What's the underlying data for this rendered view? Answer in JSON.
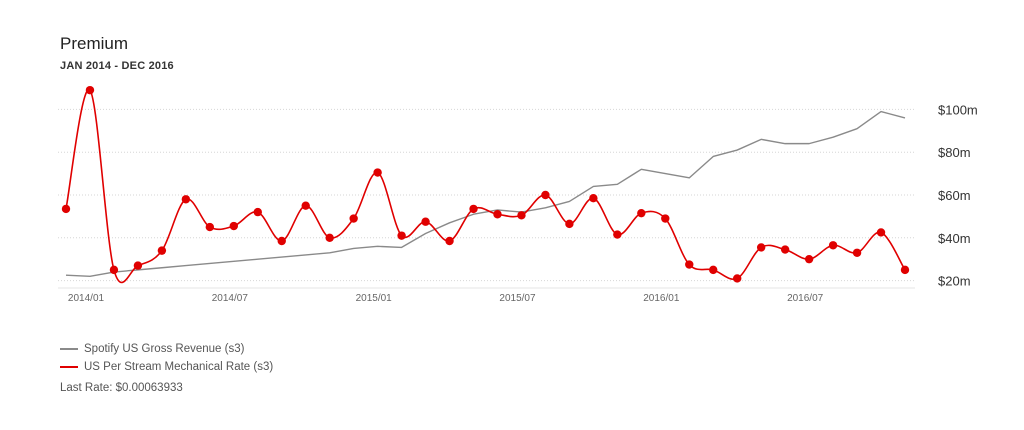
{
  "header": {
    "title": "Premium",
    "subtitle": "JAN 2014 - DEC 2016"
  },
  "legend": {
    "items": [
      {
        "label": "Spotify US Gross Revenue (s3)",
        "color": "#8a8a8a"
      },
      {
        "label": "US Per Stream Mechanical Rate (s3)",
        "color": "#e00000"
      }
    ],
    "last_rate": "Last Rate: $0.00063933"
  },
  "chart_data": {
    "type": "line",
    "x_tick_labels": [
      "2014/01",
      "2014/07",
      "2015/01",
      "2015/07",
      "2016/01",
      "2016/07"
    ],
    "y_tick_labels": [
      "$20m",
      "$40m",
      "$60m",
      "$80m",
      "$100m"
    ],
    "y_ticks": [
      20,
      40,
      60,
      80,
      100
    ],
    "ylim": [
      17,
      110
    ],
    "x_count": 36,
    "grid": true,
    "y_axis_side": "right",
    "series": [
      {
        "name": "Spotify US Gross Revenue (s3)",
        "color": "#8a8a8a",
        "markers": false,
        "smooth": false,
        "values": [
          22.5,
          22,
          24,
          25,
          26,
          27,
          28,
          29,
          30,
          31,
          32,
          33,
          35,
          36,
          35.5,
          42,
          47,
          51,
          53,
          52,
          54,
          57,
          64,
          65,
          72,
          70,
          68,
          78,
          81,
          86,
          84,
          84,
          87,
          91,
          99,
          96
        ]
      },
      {
        "name": "US Per Stream Mechanical Rate (s3)",
        "color": "#e00000",
        "markers": true,
        "smooth": true,
        "values": [
          53.5,
          109,
          25,
          27,
          34,
          58,
          45,
          45.5,
          52,
          38.5,
          55,
          40,
          49,
          70.5,
          41,
          47.5,
          38.5,
          53.5,
          51,
          50.5,
          60,
          46.5,
          58.5,
          41.5,
          51.5,
          49,
          27.5,
          25,
          21,
          35.5,
          34.5,
          30,
          36.5,
          33,
          42.5,
          25
        ]
      }
    ]
  }
}
